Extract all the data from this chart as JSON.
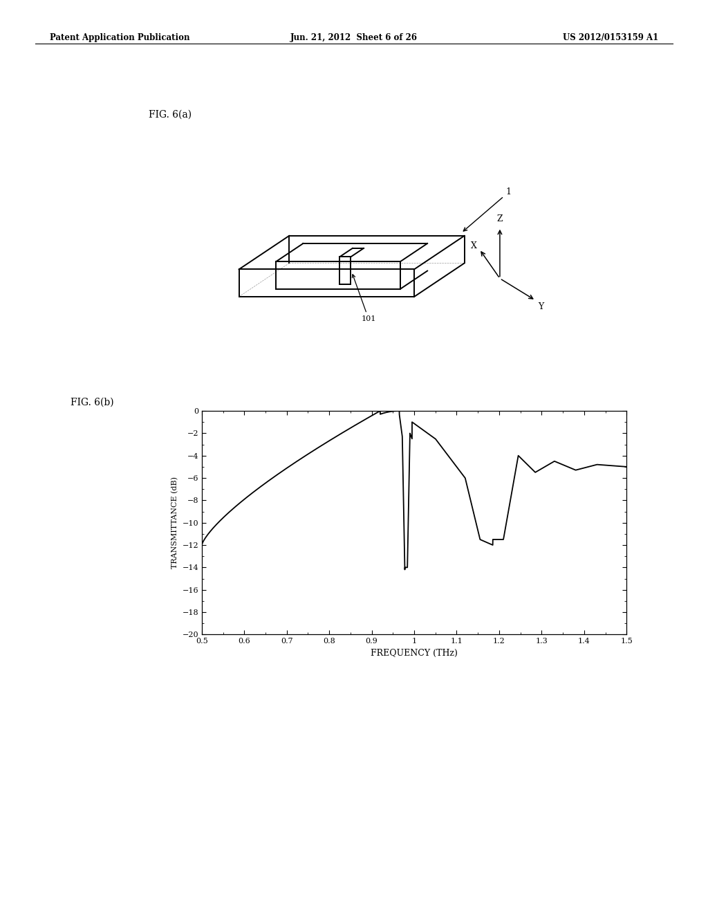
{
  "header_left": "Patent Application Publication",
  "header_center": "Jun. 21, 2012  Sheet 6 of 26",
  "header_right": "US 2012/0153159 A1",
  "fig_a_label": "FIG. 6(a)",
  "fig_b_label": "FIG. 6(b)",
  "label_1": "1",
  "label_101": "101",
  "xlabel": "FREQUENCY (THz)",
  "ylabel": "TRANSMITTANCE (dB)",
  "xlim": [
    0.5,
    1.5
  ],
  "ylim": [
    -20,
    0
  ],
  "xticks": [
    0.5,
    0.6,
    0.7,
    0.8,
    0.9,
    1.0,
    1.1,
    1.2,
    1.3,
    1.4,
    1.5
  ],
  "yticks": [
    0,
    -2,
    -4,
    -6,
    -8,
    -10,
    -12,
    -14,
    -16,
    -18,
    -20
  ],
  "background_color": "#ffffff",
  "line_color": "#000000",
  "header_fontsize": 8.5,
  "fig_label_fontsize": 10
}
